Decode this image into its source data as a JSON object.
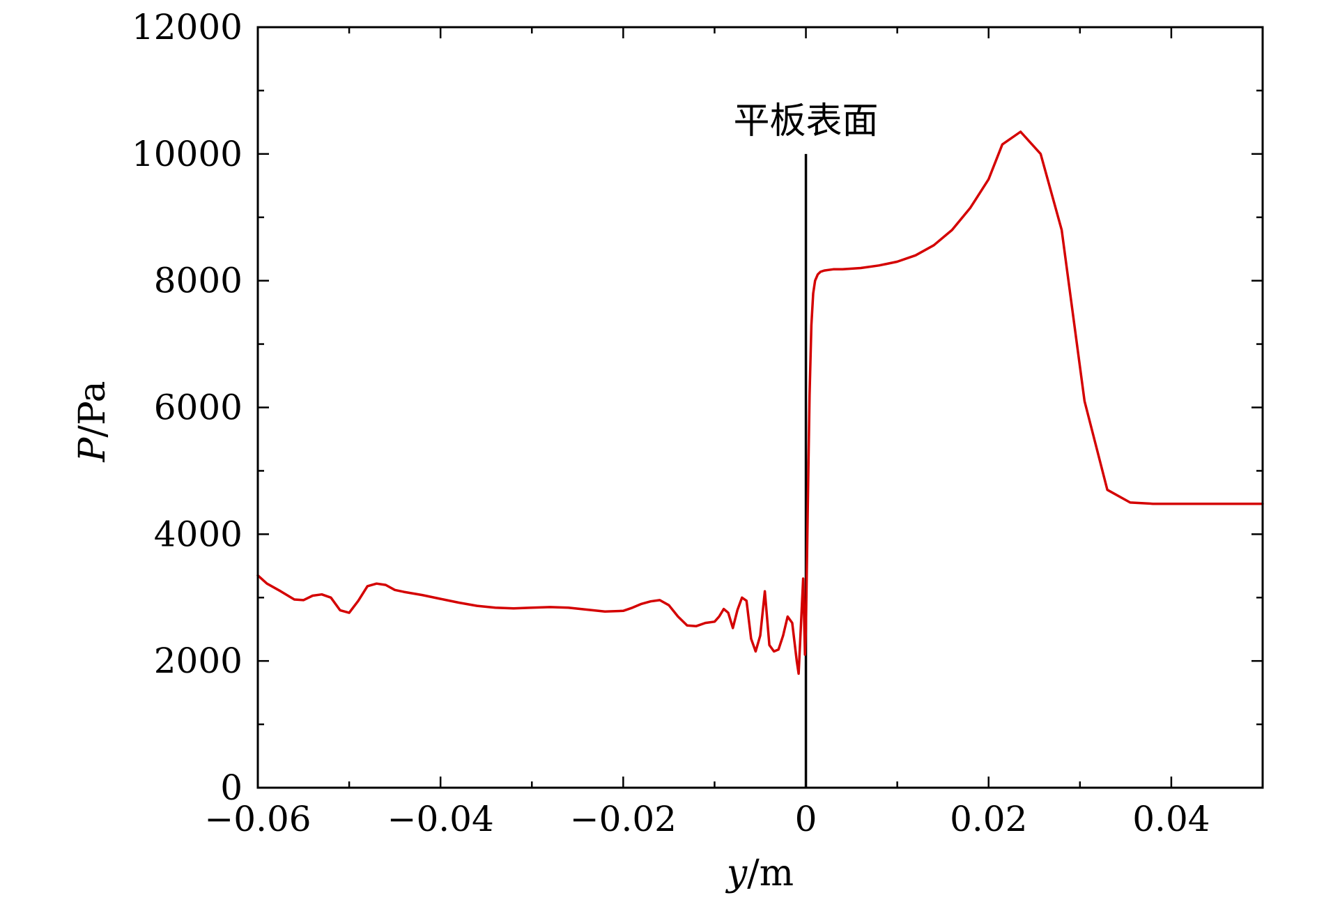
{
  "chart_data": {
    "type": "line",
    "title": "",
    "xlabel_var": "y",
    "xlabel_unit": "/m",
    "ylabel_var": "P",
    "ylabel_unit": "/Pa",
    "xlim": [
      -0.06,
      0.05
    ],
    "ylim": [
      0,
      12000
    ],
    "x_ticks": [
      -0.06,
      -0.04,
      -0.02,
      0,
      0.02,
      0.04
    ],
    "x_tick_labels": [
      "−0.06",
      "−0.04",
      "−0.02",
      "0",
      "0.02",
      "0.04"
    ],
    "y_ticks": [
      0,
      2000,
      4000,
      6000,
      8000,
      10000,
      12000
    ],
    "y_tick_labels": [
      "0",
      "2000",
      "4000",
      "6000",
      "8000",
      "10000",
      "12000"
    ],
    "x_minor_step": 0.01,
    "y_minor_step": 1000,
    "grid": false,
    "legend": "none",
    "annotation": {
      "text": "平板表面",
      "x": 0,
      "y_from": 0,
      "y_to": 10000
    },
    "series": [
      {
        "color": "#d40000",
        "x": [
          -0.06,
          -0.059,
          -0.0575,
          -0.056,
          -0.055,
          -0.054,
          -0.053,
          -0.052,
          -0.051,
          -0.05,
          -0.049,
          -0.048,
          -0.047,
          -0.046,
          -0.045,
          -0.044,
          -0.042,
          -0.04,
          -0.038,
          -0.036,
          -0.034,
          -0.032,
          -0.03,
          -0.028,
          -0.026,
          -0.024,
          -0.022,
          -0.02,
          -0.019,
          -0.018,
          -0.017,
          -0.016,
          -0.015,
          -0.014,
          -0.013,
          -0.012,
          -0.011,
          -0.01,
          -0.0095,
          -0.009,
          -0.0085,
          -0.008,
          -0.0075,
          -0.007,
          -0.0065,
          -0.006,
          -0.0055,
          -0.005,
          -0.0045,
          -0.004,
          -0.0035,
          -0.003,
          -0.0025,
          -0.002,
          -0.0015,
          -0.001,
          -0.0008,
          -0.0005,
          -0.0003,
          -0.0001,
          0.0,
          0.0002,
          0.0004,
          0.0006,
          0.0008,
          0.001,
          0.0013,
          0.0016,
          0.002,
          0.0025,
          0.003,
          0.004,
          0.006,
          0.008,
          0.01,
          0.012,
          0.014,
          0.016,
          0.018,
          0.02,
          0.0215,
          0.0235,
          0.0257,
          0.028,
          0.0305,
          0.033,
          0.0355,
          0.038,
          0.04,
          0.045,
          0.05
        ],
        "y": [
          3350,
          3220,
          3100,
          2970,
          2960,
          3030,
          3050,
          3000,
          2800,
          2760,
          2950,
          3180,
          3220,
          3200,
          3120,
          3090,
          3040,
          2980,
          2920,
          2870,
          2840,
          2830,
          2840,
          2850,
          2840,
          2810,
          2780,
          2790,
          2840,
          2900,
          2940,
          2960,
          2880,
          2700,
          2560,
          2550,
          2600,
          2620,
          2700,
          2820,
          2760,
          2520,
          2800,
          3000,
          2950,
          2350,
          2150,
          2400,
          3100,
          2250,
          2150,
          2180,
          2400,
          2700,
          2600,
          2000,
          1800,
          2700,
          3300,
          2100,
          2500,
          4400,
          6200,
          7300,
          7800,
          8000,
          8100,
          8140,
          8160,
          8170,
          8180,
          8180,
          8200,
          8240,
          8300,
          8400,
          8560,
          8800,
          9150,
          9600,
          10150,
          10350,
          10000,
          8800,
          6100,
          4700,
          4500,
          4480,
          4480,
          4480,
          4480
        ]
      }
    ]
  }
}
